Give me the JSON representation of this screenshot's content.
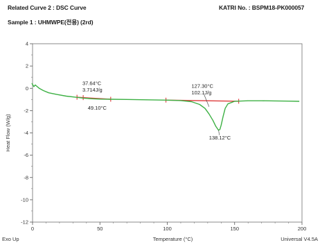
{
  "header": {
    "related": "Related Curve 2 : DSC Curve",
    "sample": "Sample 1 : UHMWPE(전용) (2rd)",
    "katri": "KATRI No. : BSPM18-PK000057"
  },
  "chart_data": {
    "type": "line",
    "xlabel": "Temperature (°C)",
    "ylabel": "Heat Flow (W/g)",
    "xlim": [
      0,
      200
    ],
    "ylim": [
      -12,
      4
    ],
    "x_ticks": [
      0,
      50,
      100,
      150,
      200
    ],
    "y_ticks": [
      4,
      2,
      0,
      -2,
      -4,
      -6,
      -8,
      -10,
      -12
    ],
    "grid": false,
    "footer_left": "Exo Up",
    "footer_right": "Universal V4.5A",
    "series": [
      {
        "color": "#3cb043",
        "x": [
          -0.5,
          1,
          2,
          3,
          5,
          8,
          12,
          18,
          25,
          32,
          38,
          44,
          50,
          58,
          70,
          85,
          100,
          110,
          118,
          124,
          128,
          131,
          134,
          136,
          138,
          139,
          140,
          141.5,
          143,
          145,
          150,
          160,
          170,
          180,
          190,
          198
        ],
        "y": [
          0.45,
          0.15,
          0.3,
          0.2,
          0.0,
          -0.2,
          -0.4,
          -0.55,
          -0.7,
          -0.8,
          -0.88,
          -0.94,
          -0.97,
          -0.98,
          -1.0,
          -1.03,
          -1.06,
          -1.1,
          -1.2,
          -1.45,
          -1.8,
          -2.3,
          -2.9,
          -3.4,
          -3.75,
          -3.7,
          -3.3,
          -2.5,
          -1.8,
          -1.4,
          -1.16,
          -1.12,
          -1.12,
          -1.13,
          -1.15,
          -1.17
        ]
      }
    ],
    "annotations": [
      {
        "text": "37.64°C",
        "x": 37,
        "y": 0.3
      },
      {
        "text": "3.714J/g",
        "x": 37,
        "y": -0.3
      },
      {
        "text": "49.10°C",
        "x": 41,
        "y": -1.9
      },
      {
        "text": "127.30°C",
        "x": 118,
        "y": 0.05
      },
      {
        "text": "102.1J/g",
        "x": 118,
        "y": -0.55
      },
      {
        "text": "138.12°C",
        "x": 131,
        "y": -4.6
      }
    ],
    "integration_baselines": [
      {
        "color": "#e04848",
        "x1": 33,
        "y1": -0.8,
        "x2": 58,
        "y2": -0.98,
        "markers_x": [
          33,
          37.6,
          58
        ]
      },
      {
        "color": "#e04848",
        "x1": 99,
        "y1": -1.06,
        "x2": 153,
        "y2": -1.16,
        "markers_x": [
          99,
          153
        ]
      }
    ],
    "pointer_lines": [
      {
        "x1": 127.3,
        "y1": -0.55,
        "x2": 131,
        "y2": -1.65
      },
      {
        "x1": 138.12,
        "y1": -3.75,
        "x2": 138.6,
        "y2": -4.2
      }
    ]
  }
}
